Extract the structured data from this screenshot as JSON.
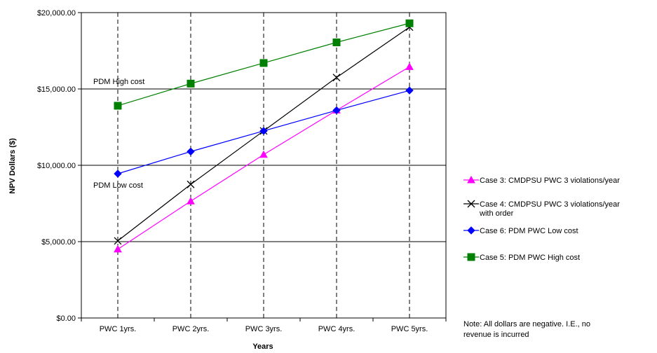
{
  "chart_data": {
    "type": "line",
    "title": "",
    "xlabel": "Years",
    "ylabel": "NPV Dollars ($)",
    "categories": [
      "PWC 1yrs.",
      "PWC 2yrs.",
      "PWC 3yrs.",
      "PWC 4yrs.",
      "PWC 5yrs."
    ],
    "ylim": [
      0,
      20000
    ],
    "yticks": [
      0,
      5000,
      10000,
      15000,
      20000
    ],
    "ytick_labels": [
      "$0.00",
      "$5,000.00",
      "$10,000.00",
      "$15,000.00",
      "$20,000.00"
    ],
    "grid": "horizontal solid at major ticks, vertical dashed at categories",
    "legend_position": "right",
    "series": [
      {
        "name": "Case 3: CMDPSU PWC 3 violations/year",
        "values": [
          4500,
          7650,
          10700,
          13600,
          16450
        ],
        "color": "#ff00ff",
        "marker": "triangle"
      },
      {
        "name": "Case 4: CMDPSU PWC 3 violations/year with order",
        "name_lines": [
          "Case 4: CMDPSU PWC 3 violations/year",
          "with order"
        ],
        "values": [
          5050,
          8750,
          12250,
          15750,
          19050
        ],
        "color": "#000000",
        "marker": "x"
      },
      {
        "name": "Case 6: PDM PWC Low cost",
        "values": [
          9450,
          10900,
          12250,
          13600,
          14900
        ],
        "color": "#0000ff",
        "marker": "diamond"
      },
      {
        "name": "Case 5: PDM PWC High cost",
        "values": [
          13900,
          15350,
          16700,
          18050,
          19300
        ],
        "color": "#008000",
        "marker": "square"
      }
    ],
    "annotations": [
      {
        "text": "PDM High cost"
      },
      {
        "text": "PDM Low cost"
      }
    ],
    "note_lines": [
      "Note: All dollars are negative.  I.E., no",
      "revenue is incurred"
    ]
  }
}
